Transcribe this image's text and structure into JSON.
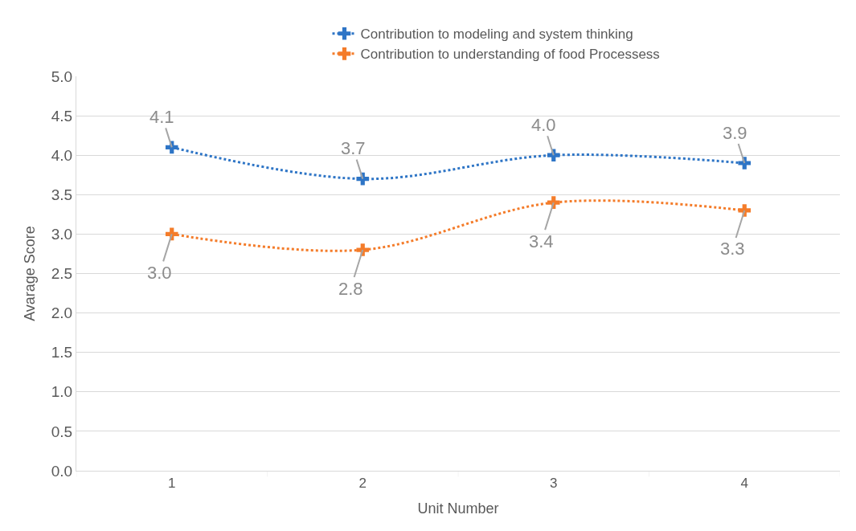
{
  "chart_data": {
    "type": "line",
    "xlabel": "Unit Number",
    "ylabel": "Avarage Score",
    "categories": [
      "1",
      "2",
      "3",
      "4"
    ],
    "series": [
      {
        "name": "Contribution to modeling and system thinking",
        "color": "#2e75c6",
        "values": [
          4.1,
          3.7,
          4.0,
          3.9
        ],
        "value_labels": [
          "4.1",
          "3.7",
          "4.0",
          "3.9"
        ]
      },
      {
        "name": "Contribution to understanding of food Processess",
        "color": "#f47c2a",
        "values": [
          3.0,
          2.8,
          3.4,
          3.3
        ],
        "value_labels": [
          "3.0",
          "2.8",
          "3.4",
          "3.3"
        ]
      }
    ],
    "ylim": [
      0,
      5
    ],
    "yticks": [
      "0.0",
      "0.5",
      "1.0",
      "1.5",
      "2.0",
      "2.5",
      "3.0",
      "3.5",
      "4.0",
      "4.5",
      "5.0"
    ],
    "grid": "y",
    "legend": "top",
    "marker": "cross",
    "line_style": "dotted"
  }
}
